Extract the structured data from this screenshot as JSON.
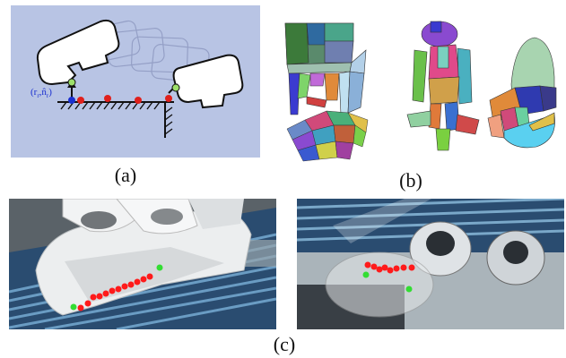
{
  "panel_a": {
    "caption": "(a)",
    "contact_label": "(r",
    "contact_label_sub1": "r",
    "contact_label_mid": ",n̂",
    "contact_label_sub2": "r",
    "contact_label_end": ")",
    "colors": {
      "background": "#b8c4e4",
      "contact_red": "#e0201c",
      "contact_green": "#9de06a",
      "contact_blue": "#1a2fd0"
    }
  },
  "panel_b": {
    "caption": "(b)"
  },
  "panel_c": {
    "caption": "(c)",
    "colors": {
      "red_point": "#ff1a1a",
      "green_point": "#33dd33"
    }
  }
}
